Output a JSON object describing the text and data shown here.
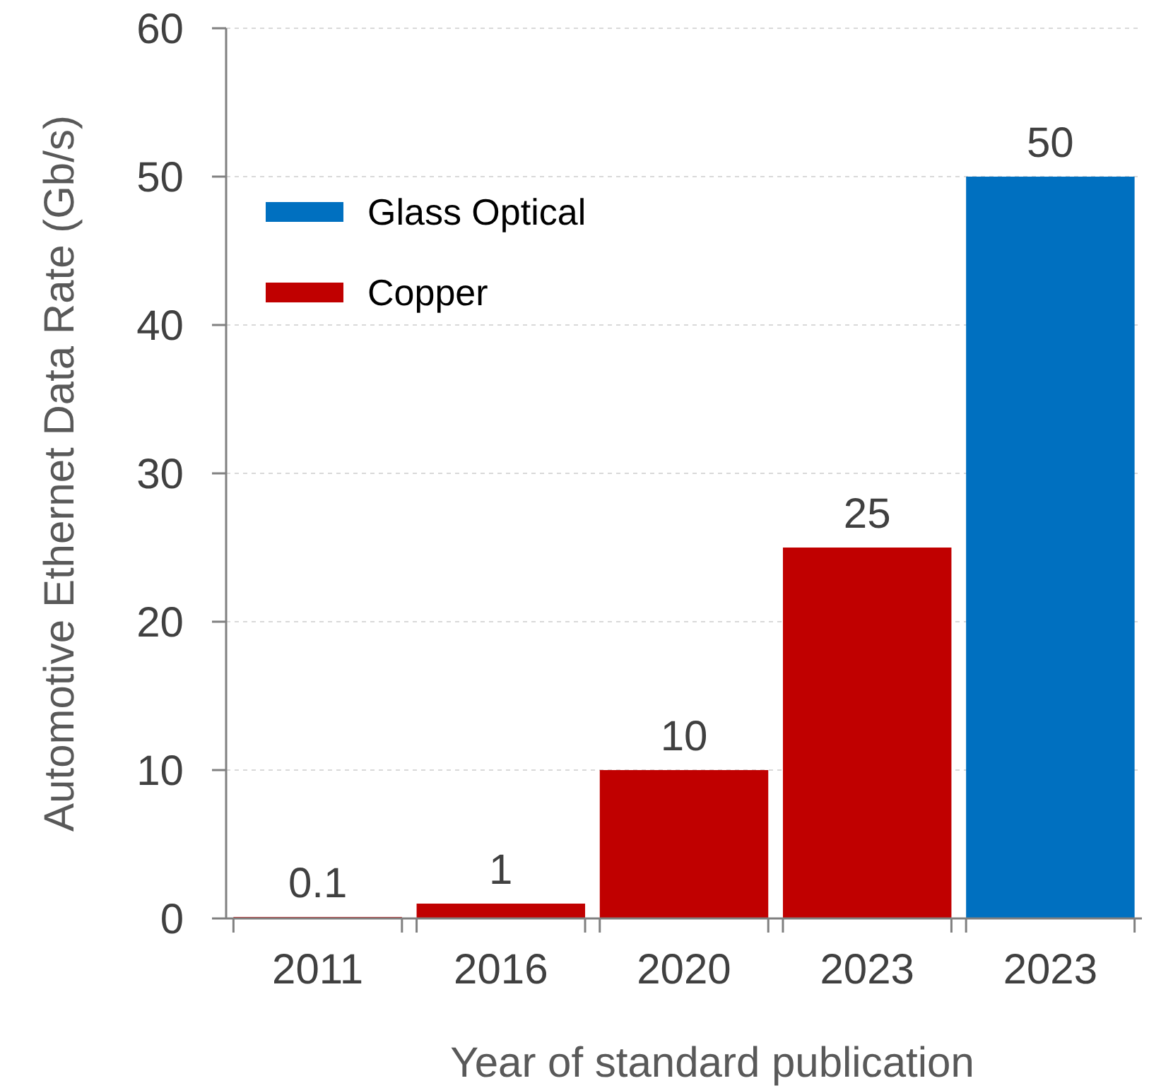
{
  "chart_data": {
    "type": "bar",
    "xlabel": "Year of standard publication",
    "ylabel": "Automotive Ethernet Data Rate (Gb/s)",
    "categories": [
      "2011",
      "2016",
      "2020",
      "2023",
      "2023"
    ],
    "series": [
      {
        "name": "Glass Optical",
        "color": "#0070c0",
        "values": [
          null,
          null,
          null,
          null,
          50
        ]
      },
      {
        "name": "Copper",
        "color": "#c00000",
        "values": [
          0.1,
          1,
          10,
          25,
          null
        ]
      }
    ],
    "ylim": [
      0,
      60
    ],
    "yticks": [
      0,
      10,
      20,
      30,
      40,
      50,
      60
    ],
    "grid": "y",
    "legend": "top left",
    "data_labels": true
  }
}
